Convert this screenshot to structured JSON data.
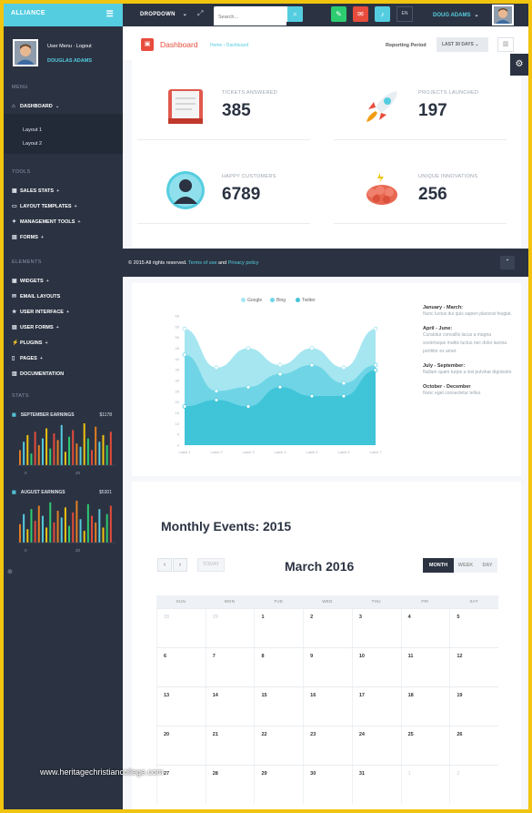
{
  "topbar": {
    "brand": "ALLIANCE",
    "dropdown_label": "DROPDOWN",
    "search_placeholder": "Search...",
    "lang": "EN",
    "user_name": "DOUG ADAMS"
  },
  "sidebar": {
    "user_menu": "User Menu · Logout",
    "user_name": "DOUGLAS ADAMS",
    "menu_heading": "MENU",
    "dashboard": "DASHBOARD",
    "sub_items": [
      "Layout 1",
      "Layout 2"
    ],
    "tools_heading": "TOOLS",
    "tools": [
      "SALES STATS",
      "LAYOUT TEMPLATES",
      "MANAGEMENT TOOLS",
      "FORMS"
    ],
    "elements_heading": "ELEMENTS",
    "elements": [
      "WIDGETS",
      "EMAIL LAYOUTS",
      "USER INTERFACE",
      "USER FORMS",
      "PLUGINS",
      "PAGES",
      "DOCUMENTATION"
    ],
    "stats_heading": "STATS",
    "stat1": {
      "title": "SEPTEMBER EARNINGS",
      "value": "$1178",
      "axis": [
        "0",
        "20"
      ]
    },
    "stat2": {
      "title": "AUGUST EARNINGS",
      "value": "$5301",
      "axis": [
        "0",
        "20"
      ]
    },
    "stat1_bars": [
      9,
      14,
      18,
      7,
      20,
      12,
      16,
      22,
      10,
      19,
      15,
      24,
      8,
      17,
      21,
      13,
      11,
      25,
      16,
      9,
      23,
      14,
      18,
      12,
      20
    ],
    "stat2_bars": [
      11,
      17,
      8,
      20,
      13,
      22,
      16,
      9,
      24,
      12,
      19,
      15,
      21,
      10,
      18,
      25,
      14,
      7,
      23,
      16,
      12,
      20,
      9,
      17,
      22
    ]
  },
  "page": {
    "title": "Dashboard",
    "breadcrumb": "Home › Dashboard",
    "reporting_label": "Reporting Period",
    "period": "LAST 30 DAYS"
  },
  "stats": [
    {
      "label": "TICKETS ANSWERED",
      "value": "385",
      "icon": "ticket-icon"
    },
    {
      "label": "PROJECTS LAUNCHED",
      "value": "197",
      "icon": "rocket-icon"
    },
    {
      "label": "HAPPY CUSTOMERS",
      "value": "6789",
      "icon": "customer-icon"
    },
    {
      "label": "UNIQUE INNOVATIONS",
      "value": "256",
      "icon": "brain-icon"
    }
  ],
  "footer": {
    "copyright": "© 2015 All rights reserved.",
    "terms": "Terms of use",
    "and": "and",
    "privacy": "Privacy policy"
  },
  "chart_data": {
    "type": "area",
    "categories": [
      "Label 1",
      "Label 2",
      "Label 3",
      "Label 4",
      "Label 5",
      "Label 6",
      "Label 7"
    ],
    "series": [
      {
        "name": "Google",
        "color": "#a6e6f0",
        "values": [
          90,
          60,
          75,
          62,
          75,
          60,
          90
        ]
      },
      {
        "name": "Bing",
        "color": "#6fd5e6",
        "values": [
          70,
          42,
          45,
          55,
          62,
          48,
          62
        ]
      },
      {
        "name": "Twitter",
        "color": "#40c4d8",
        "values": [
          30,
          35,
          30,
          45,
          38,
          38,
          58
        ]
      }
    ],
    "yticks": [
      "0",
      "5",
      "10",
      "15",
      "20",
      "25",
      "30",
      "35",
      "40",
      "45",
      "50",
      "55",
      "60"
    ],
    "ylim": [
      0,
      100
    ]
  },
  "notes": [
    {
      "title": "January - March:",
      "body": "Nunc luctus dui quis sapien placerat feugiat."
    },
    {
      "title": "April - June:",
      "body": "Curabitur convallis lacus a magna scelerisque mattis luctus nec dolor lacinia porttitor ex amet."
    },
    {
      "title": "July - September:",
      "body": "Nullam quam turpis a nisl pulvinar dignissim."
    },
    {
      "title": "October - December",
      "body": "Nunc eget consectetur tellus."
    }
  ],
  "calendar": {
    "section_title": "Monthly Events: 2015",
    "month": "March 2016",
    "today": "TODAY",
    "views": [
      "MONTH",
      "WEEK",
      "DAY"
    ],
    "days": [
      "SUN",
      "MON",
      "TUE",
      "WED",
      "THU",
      "FRI",
      "SAT"
    ],
    "weeks": [
      [
        "28",
        "29",
        "1",
        "2",
        "3",
        "4",
        "5"
      ],
      [
        "6",
        "7",
        "8",
        "9",
        "10",
        "11",
        "12"
      ],
      [
        "13",
        "14",
        "15",
        "16",
        "17",
        "18",
        "19"
      ],
      [
        "20",
        "21",
        "22",
        "23",
        "24",
        "25",
        "26"
      ],
      [
        "27",
        "28",
        "29",
        "30",
        "31",
        "1",
        "2"
      ]
    ],
    "muted": [
      [
        0,
        0
      ],
      [
        0,
        1
      ],
      [
        4,
        5
      ],
      [
        4,
        6
      ]
    ]
  },
  "watermark": "www.heritagechristiancollege.com"
}
